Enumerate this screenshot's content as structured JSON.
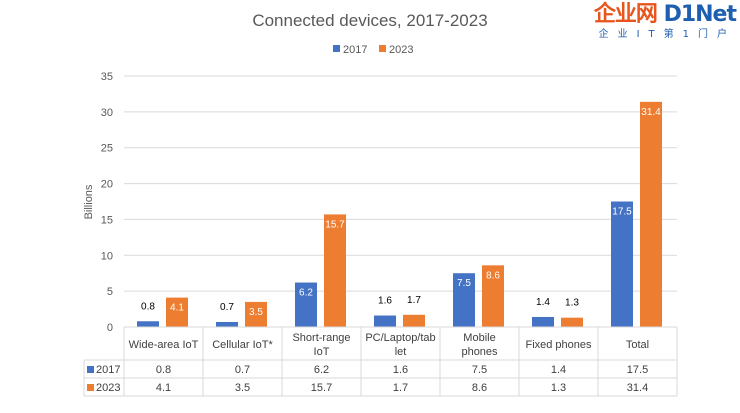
{
  "chart_data": {
    "type": "bar",
    "title": "Connected devices, 2017-2023",
    "ylabel": "Billions",
    "xlabel": "",
    "ylim": [
      0,
      35
    ],
    "yticks": [
      0,
      5,
      10,
      15,
      20,
      25,
      30,
      35
    ],
    "grid": true,
    "legend": "top",
    "categories": [
      "Wide-area IoT",
      "Cellular IoT*",
      "Short-range IoT",
      "PC/Laptop/tablet",
      "Mobile phones",
      "Fixed phones",
      "Total"
    ],
    "category_lines": [
      [
        "Wide-area IoT"
      ],
      [
        "Cellular IoT*"
      ],
      [
        "Short-range",
        "IoT"
      ],
      [
        "PC/Laptop/tab",
        "let"
      ],
      [
        "Mobile",
        "phones"
      ],
      [
        "Fixed phones"
      ],
      [
        "Total"
      ]
    ],
    "series": [
      {
        "name": "2017",
        "color": "#4472c4",
        "values": [
          0.8,
          0.7,
          6.2,
          1.6,
          7.5,
          1.4,
          17.5
        ]
      },
      {
        "name": "2023",
        "color": "#ed7d31",
        "values": [
          4.1,
          3.5,
          15.7,
          1.7,
          8.6,
          1.3,
          31.4
        ]
      }
    ],
    "data_table": true
  },
  "watermark": {
    "logo": "企业网D1Net",
    "tagline": "企业IT第1门户"
  }
}
